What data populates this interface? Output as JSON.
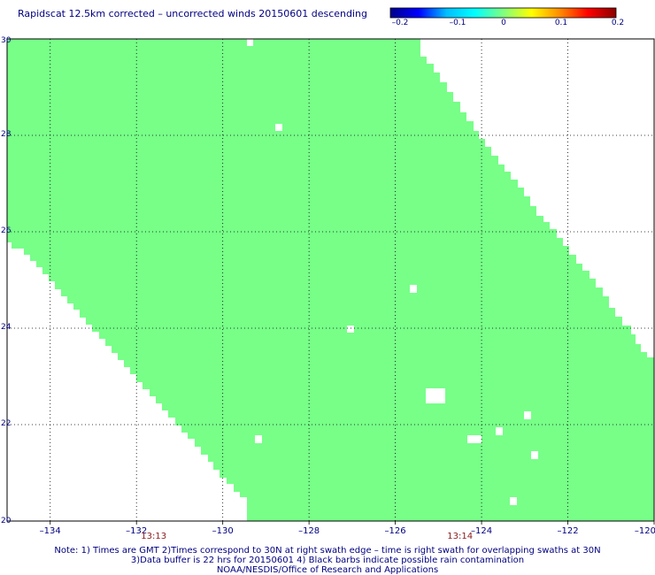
{
  "title": "Rapidscat 12.5km corrected – uncorrected winds 20150601 descending",
  "colorbar": {
    "ticks": [
      "–0.2",
      "–0.1",
      "0",
      "0.1",
      "0.2"
    ],
    "colors": [
      "#00008b",
      "#0000ff",
      "#00bfff",
      "#00ffff",
      "#7fff7f",
      "#ffff00",
      "#ff8c00",
      "#ff0000",
      "#8b0000"
    ]
  },
  "map": {
    "lat_range": [
      20,
      30
    ],
    "lon_range": [
      -135,
      -120
    ],
    "lat_ticks": [
      "30",
      "28",
      "26",
      "24",
      "22",
      "20"
    ],
    "lon_ticks": [
      "–134",
      "–132",
      "–130",
      "–128",
      "–126",
      "–124",
      "–122",
      "–120"
    ],
    "swath_color": "#77ff88",
    "value_color_meaning": "0",
    "time_labels": [
      "13:13",
      "13:14"
    ]
  },
  "notes": [
    "Note: 1) Times are GMT 2)Times correspond to 30N at right swath edge – time is right swath for overlapping swaths at 30N",
    "3)Data buffer is 22 hrs for 20150601 4) Black barbs indicate possible rain contamination",
    "NOAA/NESDIS/Office of Research and Applications"
  ]
}
